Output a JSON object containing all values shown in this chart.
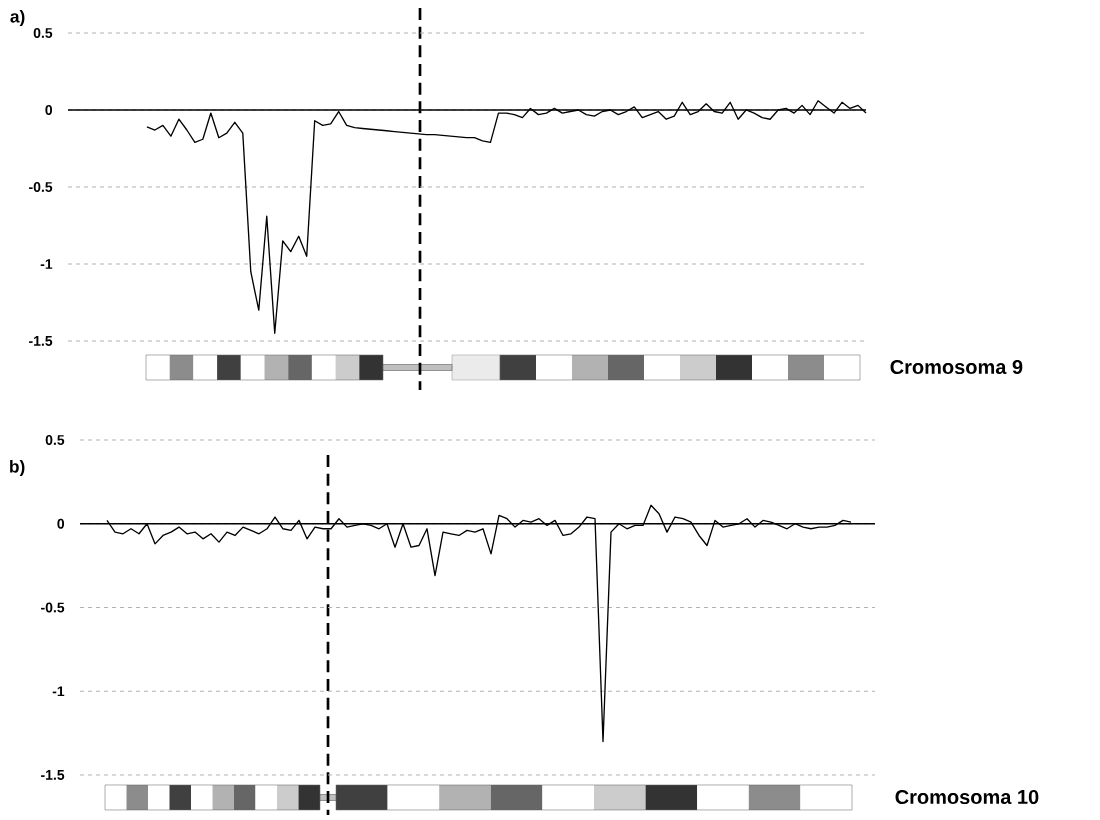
{
  "chart_data": [
    {
      "type": "line",
      "title": "a)",
      "xlabel": "Cromosoma 9",
      "color": "#000000",
      "marker": "none",
      "line_style": "solid",
      "grid": "y",
      "tick_labels": "y",
      "categories": [
        null,
        null,
        null,
        null,
        null,
        null,
        null,
        null,
        null,
        null,
        null,
        null,
        null,
        null,
        null,
        null,
        null,
        null,
        null,
        null,
        null,
        null,
        null,
        null,
        null,
        null,
        null,
        null,
        null,
        null,
        null,
        null,
        null,
        null,
        null,
        null,
        null,
        null,
        null,
        null,
        null,
        null,
        null,
        null,
        null,
        null,
        null,
        null,
        null,
        null,
        null,
        null,
        null,
        null,
        null,
        null,
        null,
        null,
        null,
        null,
        null,
        null,
        null,
        null,
        null,
        null,
        null,
        null,
        null,
        null,
        null,
        null,
        null,
        null,
        null,
        null,
        null,
        null,
        null,
        null,
        null,
        null,
        null,
        null,
        null,
        null,
        null,
        null,
        null,
        null,
        null
      ],
      "values": [
        -0.11,
        -0.13,
        -0.1,
        -0.17,
        -0.06,
        -0.13,
        -0.21,
        -0.19,
        -0.02,
        -0.18,
        -0.15,
        -0.08,
        -0.15,
        -1.05,
        -1.3,
        -0.69,
        -1.45,
        -0.85,
        -0.92,
        -0.82,
        -0.95,
        -0.07,
        -0.1,
        -0.09,
        -0.01,
        -0.1,
        -0.115,
        -0.12,
        -0.125,
        -0.13,
        -0.135,
        -0.14,
        -0.145,
        -0.15,
        -0.155,
        -0.16,
        -0.16,
        -0.165,
        -0.17,
        -0.175,
        -0.18,
        -0.18,
        -0.2,
        -0.21,
        -0.02,
        -0.02,
        -0.03,
        -0.05,
        0.01,
        -0.03,
        -0.02,
        0.01,
        -0.02,
        -0.01,
        0.0,
        -0.03,
        -0.04,
        -0.01,
        0.0,
        -0.03,
        -0.01,
        0.02,
        -0.05,
        -0.03,
        -0.01,
        -0.06,
        -0.04,
        0.05,
        -0.03,
        -0.01,
        0.04,
        -0.01,
        -0.02,
        0.05,
        -0.06,
        0.0,
        -0.02,
        -0.05,
        -0.06,
        0.0,
        0.01,
        -0.02,
        0.03,
        -0.03,
        0.06,
        0.02,
        -0.02,
        0.05,
        0.01,
        0.03,
        -0.02
      ],
      "ylim": [
        -1.5,
        0.5
      ],
      "yticks": [
        0.5,
        0,
        -0.5,
        -1,
        -1.5
      ],
      "ref_lines": [
        {
          "axis": "y",
          "value": 0,
          "color": "#000000",
          "line_style": "solid"
        }
      ]
    },
    {
      "type": "line",
      "title": "b)",
      "xlabel": "Cromosoma 10",
      "color": "#000000",
      "marker": "none",
      "line_style": "solid",
      "grid": "y",
      "tick_labels": "y",
      "categories": [
        null,
        null,
        null,
        null,
        null,
        null,
        null,
        null,
        null,
        null,
        null,
        null,
        null,
        null,
        null,
        null,
        null,
        null,
        null,
        null,
        null,
        null,
        null,
        null,
        null,
        null,
        null,
        null,
        null,
        null,
        null,
        null,
        null,
        null,
        null,
        null,
        null,
        null,
        null,
        null,
        null,
        null,
        null,
        null,
        null,
        null,
        null,
        null,
        null,
        null,
        null,
        null,
        null,
        null,
        null,
        null,
        null,
        null,
        null,
        null,
        null,
        null,
        null,
        null,
        null,
        null,
        null,
        null,
        null,
        null,
        null,
        null,
        null,
        null,
        null,
        null,
        null,
        null,
        null,
        null,
        null,
        null,
        null,
        null,
        null,
        null,
        null,
        null,
        null,
        null,
        null,
        null,
        null,
        null
      ],
      "values": [
        0.02,
        -0.05,
        -0.06,
        -0.03,
        -0.06,
        0.0,
        -0.12,
        -0.07,
        -0.05,
        -0.02,
        -0.06,
        -0.05,
        -0.09,
        -0.06,
        -0.11,
        -0.05,
        -0.07,
        -0.02,
        -0.04,
        -0.06,
        -0.03,
        0.04,
        -0.03,
        -0.04,
        0.02,
        -0.09,
        -0.02,
        -0.03,
        -0.03,
        0.03,
        -0.02,
        -0.01,
        0.0,
        -0.01,
        -0.03,
        0.0,
        -0.14,
        0.0,
        -0.14,
        -0.13,
        -0.03,
        -0.31,
        -0.05,
        -0.06,
        -0.07,
        -0.04,
        -0.05,
        -0.03,
        -0.18,
        0.05,
        0.03,
        -0.02,
        0.02,
        0.01,
        0.03,
        -0.01,
        0.02,
        -0.07,
        -0.06,
        -0.02,
        0.04,
        0.03,
        -1.3,
        -0.05,
        0.0,
        -0.03,
        -0.01,
        -0.01,
        0.11,
        0.06,
        -0.05,
        0.04,
        0.03,
        0.01,
        -0.07,
        -0.13,
        0.02,
        -0.02,
        -0.01,
        0.0,
        0.03,
        -0.02,
        0.02,
        0.01,
        -0.01,
        -0.03,
        0.0,
        -0.02,
        -0.03,
        -0.02,
        -0.02,
        -0.01,
        0.02,
        0.01
      ],
      "ylim": [
        -1.5,
        0.5
      ],
      "yticks": [
        0.5,
        0,
        -0.5,
        -1,
        -1.5
      ],
      "ref_lines": [
        {
          "axis": "y",
          "value": 0,
          "color": "#000000",
          "line_style": "solid"
        }
      ]
    }
  ]
}
